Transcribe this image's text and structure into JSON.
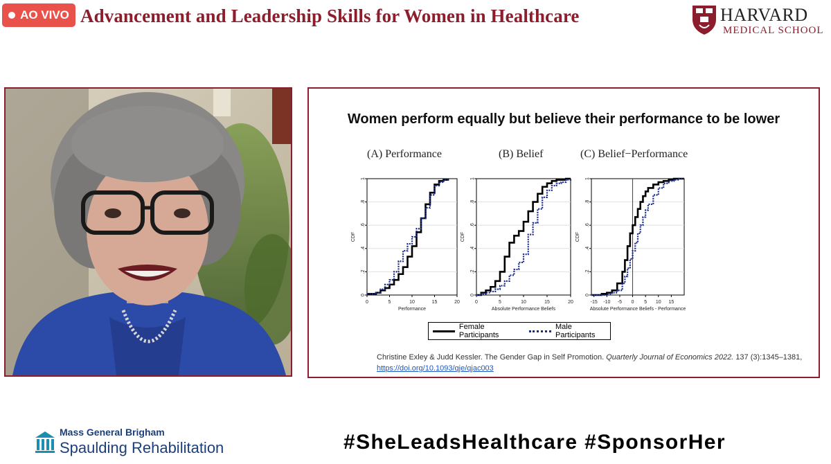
{
  "live_badge": {
    "label": "AO VIVO"
  },
  "event_title": "Advancement and Leadership  Skills for Women in Healthcare",
  "hms_logo": {
    "name": "HARVARD",
    "sub": "MEDICAL SCHOOL"
  },
  "speaker": {
    "name_tag": ""
  },
  "slide": {
    "title": "Women perform equally but believe their performance to be lower",
    "legend": {
      "female": "Female Participants",
      "male": "Male Participants"
    },
    "citation_text": "Christine Exley & Judd Kessler. The Gender Gap in Self Promotion.",
    "citation_journal": "Quarterly Journal of Economics 2022.",
    "citation_pages": "137 (3):1345–1381,",
    "citation_link": "https://doi.org/10.1093/qje/qjac003"
  },
  "chart_data": [
    {
      "type": "line",
      "title": "(A)  Performance",
      "xlabel": "Performance",
      "ylabel": "CDF",
      "xticks": [
        "0",
        "5",
        "10",
        "15",
        "20"
      ],
      "yticks": [
        "0",
        ".2",
        ".4",
        ".6",
        ".8",
        "1"
      ],
      "xlim": [
        0,
        20
      ],
      "ylim": [
        0,
        1
      ],
      "series": [
        {
          "name": "Female Participants",
          "x": [
            0,
            2,
            3,
            4,
            5,
            6,
            7,
            8,
            9,
            10,
            11,
            12,
            13,
            14,
            15,
            16,
            17,
            18
          ],
          "values": [
            0.01,
            0.02,
            0.04,
            0.06,
            0.09,
            0.13,
            0.18,
            0.24,
            0.33,
            0.42,
            0.54,
            0.66,
            0.78,
            0.88,
            0.95,
            0.98,
            0.99,
            1.0
          ]
        },
        {
          "name": "Male Participants",
          "x": [
            0,
            2,
            3,
            4,
            5,
            6,
            7,
            8,
            9,
            10,
            11,
            12,
            13,
            14,
            15,
            16,
            17,
            18
          ],
          "values": [
            0.01,
            0.02,
            0.05,
            0.09,
            0.13,
            0.2,
            0.29,
            0.38,
            0.44,
            0.5,
            0.57,
            0.66,
            0.75,
            0.86,
            0.94,
            0.97,
            0.99,
            1.0
          ]
        }
      ]
    },
    {
      "type": "line",
      "title": "(B)  Belief",
      "xlabel": "Absolute Performance Beliefs",
      "ylabel": "CDF",
      "xticks": [
        "0",
        "5",
        "10",
        "15",
        "20"
      ],
      "yticks": [
        "0",
        ".2",
        ".4",
        ".6",
        ".8",
        "1"
      ],
      "xlim": [
        0,
        20
      ],
      "ylim": [
        0,
        1
      ],
      "series": [
        {
          "name": "Female Participants",
          "x": [
            0,
            1,
            2,
            3,
            4,
            5,
            6,
            7,
            8,
            9,
            10,
            11,
            12,
            13,
            14,
            15,
            16,
            17,
            18,
            19,
            20
          ],
          "values": [
            0.0,
            0.02,
            0.04,
            0.07,
            0.12,
            0.2,
            0.33,
            0.45,
            0.51,
            0.55,
            0.63,
            0.72,
            0.8,
            0.87,
            0.93,
            0.96,
            0.98,
            0.99,
            0.99,
            1.0,
            1.0
          ]
        },
        {
          "name": "Male Participants",
          "x": [
            0,
            1,
            2,
            3,
            4,
            5,
            6,
            7,
            8,
            9,
            10,
            11,
            12,
            13,
            14,
            15,
            16,
            17,
            18,
            19,
            20
          ],
          "values": [
            0.0,
            0.01,
            0.02,
            0.03,
            0.05,
            0.08,
            0.12,
            0.17,
            0.22,
            0.28,
            0.35,
            0.52,
            0.62,
            0.74,
            0.84,
            0.9,
            0.94,
            0.96,
            0.97,
            0.99,
            1.0
          ]
        }
      ]
    },
    {
      "type": "line",
      "title": "(C)  Belief−Performance",
      "xlabel": "Absolute Performance Beliefs - Performance",
      "ylabel": "CDF",
      "xticks": [
        "-15",
        "-10",
        "-5",
        "0",
        "5",
        "10",
        "15"
      ],
      "yticks": [
        "0",
        ".2",
        ".4",
        ".6",
        ".8",
        "1"
      ],
      "xlim": [
        -16,
        20
      ],
      "ylim": [
        0,
        1
      ],
      "reference_line_x": 0,
      "series": [
        {
          "name": "Female Participants",
          "x": [
            -16,
            -12,
            -10,
            -8,
            -6,
            -4,
            -3,
            -2,
            -1,
            0,
            1,
            2,
            3,
            4,
            5,
            6,
            8,
            10,
            12,
            14,
            16,
            18,
            20
          ],
          "values": [
            0.0,
            0.01,
            0.02,
            0.04,
            0.1,
            0.2,
            0.3,
            0.42,
            0.53,
            0.6,
            0.67,
            0.74,
            0.8,
            0.85,
            0.89,
            0.92,
            0.95,
            0.97,
            0.98,
            0.99,
            1.0,
            1.0,
            1.0
          ]
        },
        {
          "name": "Male Participants",
          "x": [
            -16,
            -12,
            -10,
            -8,
            -6,
            -4,
            -3,
            -2,
            -1,
            0,
            1,
            2,
            3,
            4,
            5,
            6,
            8,
            10,
            12,
            14,
            16,
            18,
            20
          ],
          "values": [
            0.0,
            0.0,
            0.01,
            0.02,
            0.04,
            0.1,
            0.16,
            0.23,
            0.31,
            0.38,
            0.45,
            0.53,
            0.6,
            0.67,
            0.73,
            0.78,
            0.86,
            0.92,
            0.96,
            0.98,
            0.99,
            1.0,
            1.0
          ]
        }
      ]
    }
  ],
  "footer": {
    "org": "Mass General Brigham",
    "dept": "Spaulding Rehabilitation",
    "hashtags": "#SheLeadsHealthcare  #SponsorHer"
  },
  "colors": {
    "brand": "#8c1d2c",
    "live": "#e8524a",
    "female_line": "#000000",
    "male_line": "#1a2a8c",
    "mgb_blue": "#1c3f7a"
  }
}
